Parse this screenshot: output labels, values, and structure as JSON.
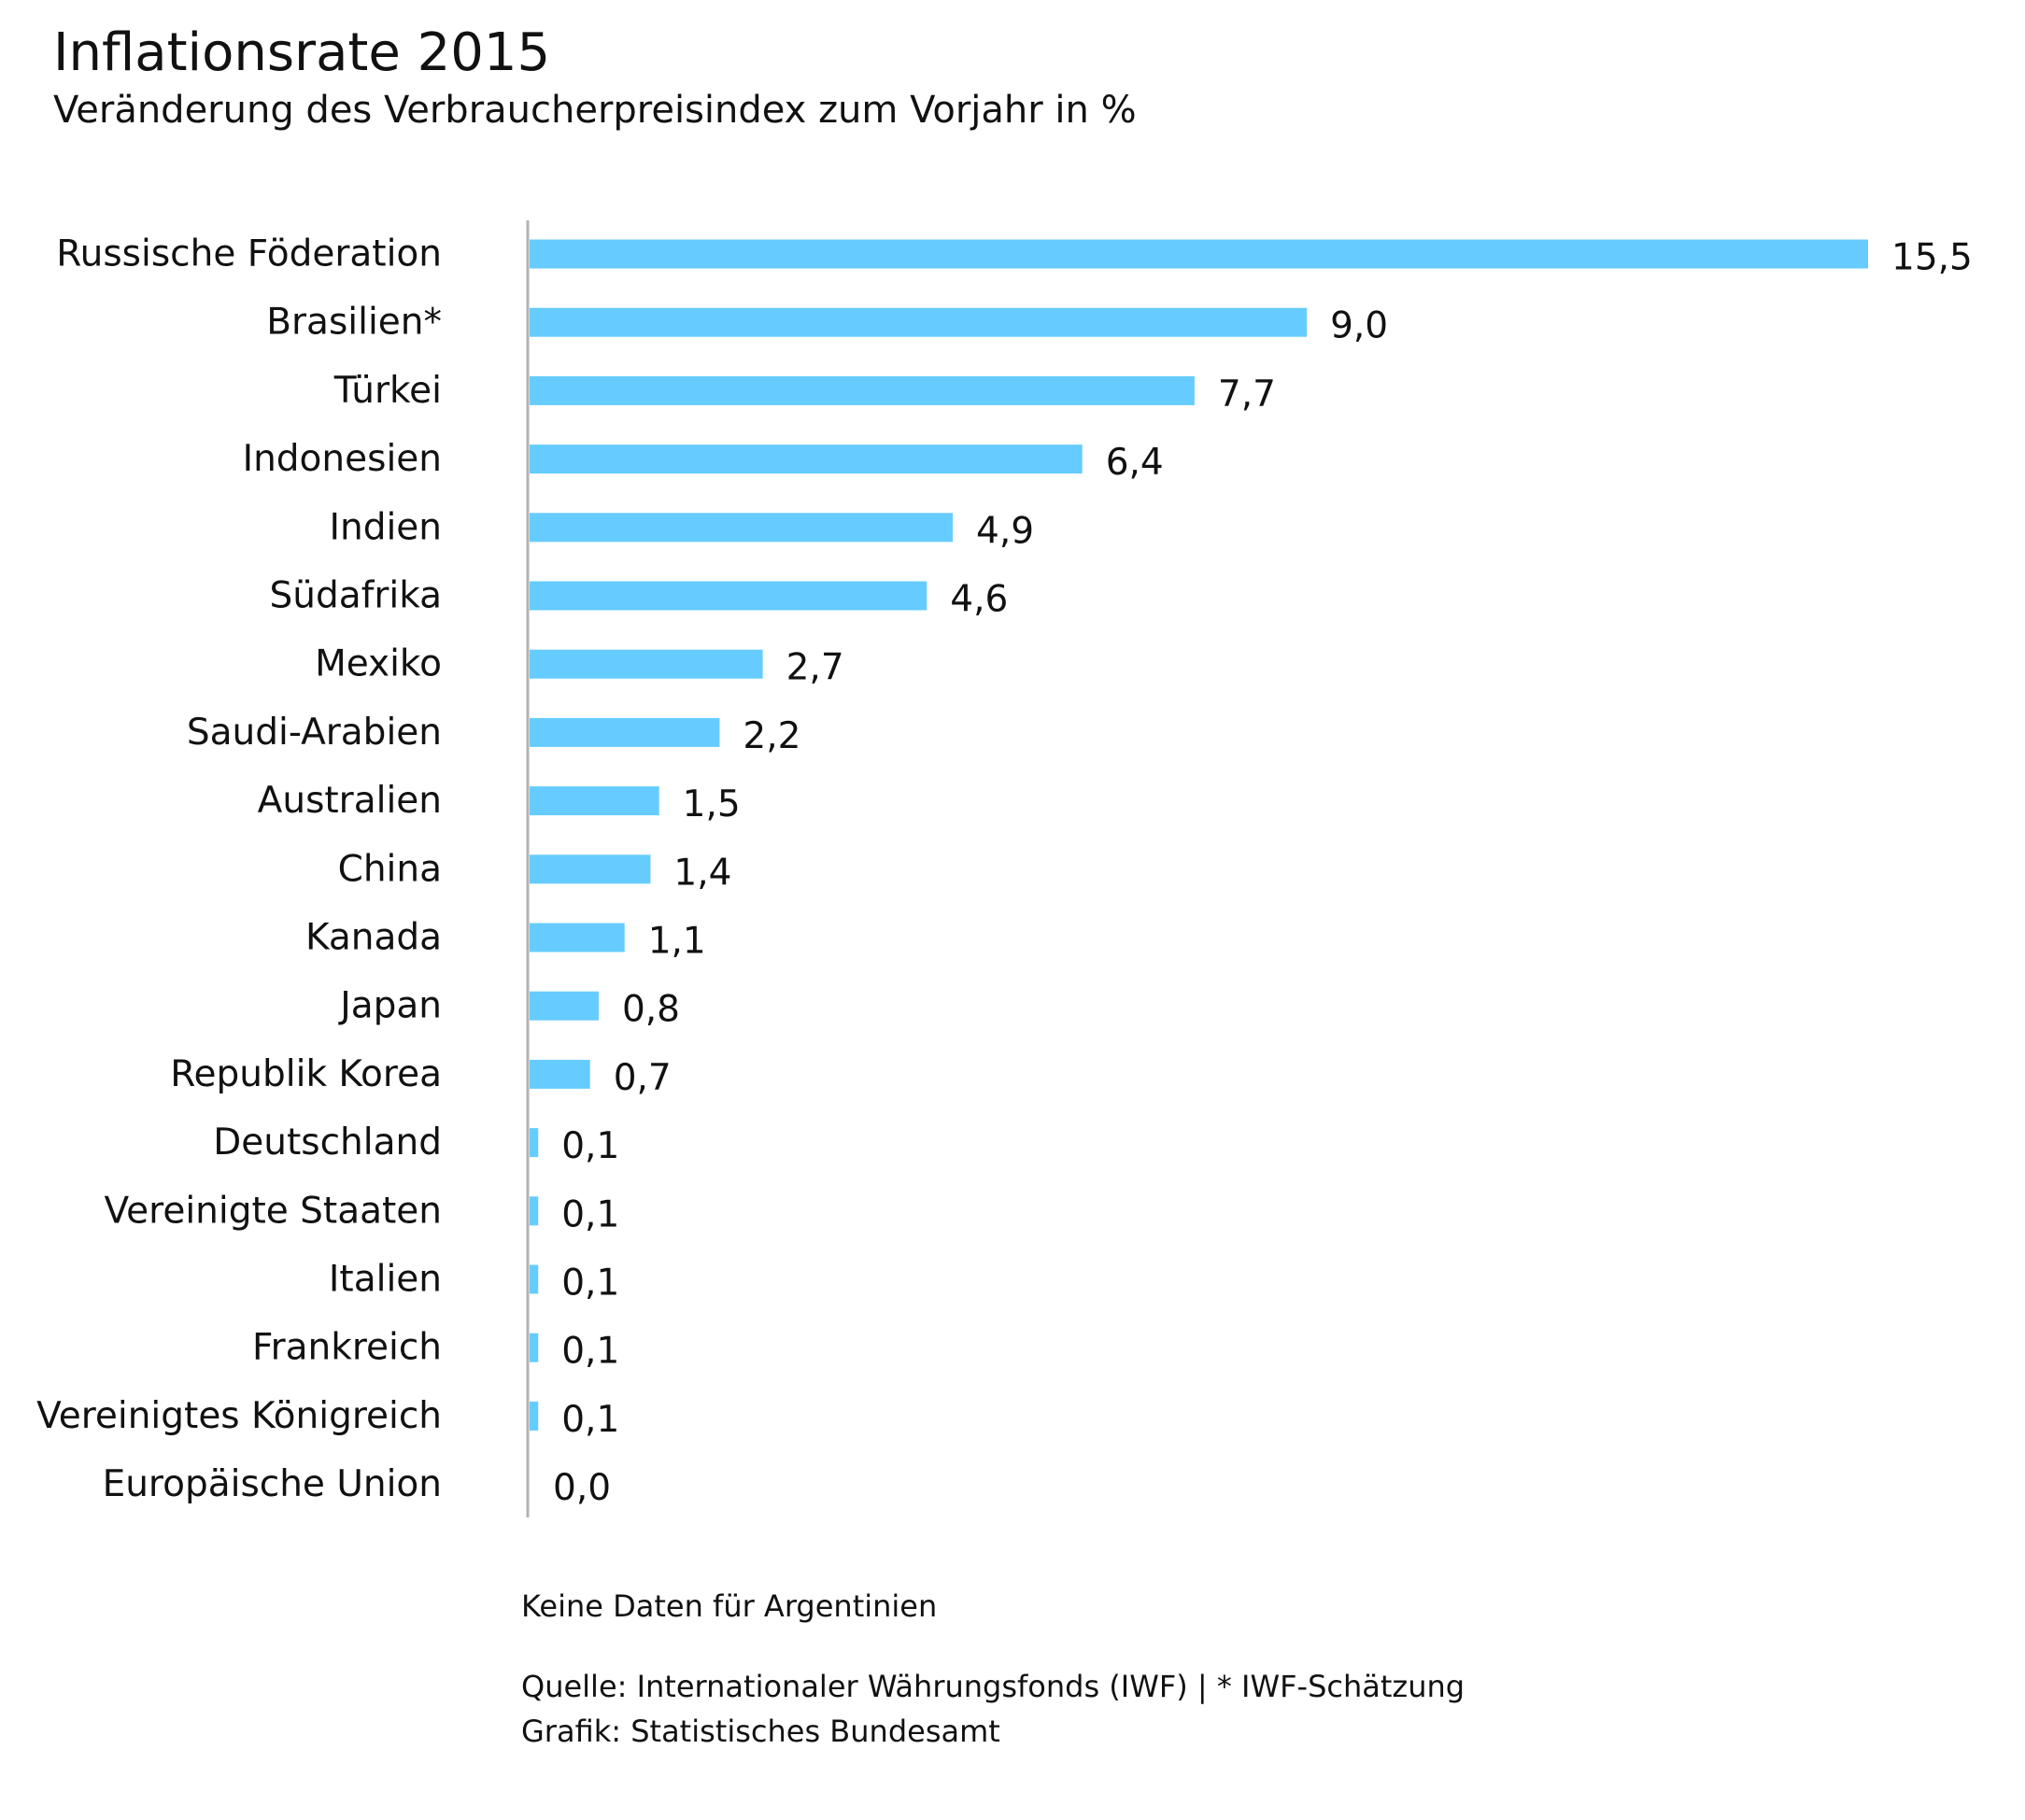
{
  "title": "Inflationsrate 2015",
  "subtitle": "Veränderung des Verbraucherpreisindex zum Vorjahr in %",
  "notes": {
    "missing": "Keine Daten für Argentinien",
    "source": "Quelle: Internationaler Währungsfonds (IWF) | * IWF-Schätzung",
    "credit": "Grafik: Statistisches Bundesamt"
  },
  "colors": {
    "bar": "#66CCFF",
    "axis": "#b3b3b3",
    "text": "#111111"
  },
  "chart_data": {
    "type": "bar",
    "orientation": "horizontal",
    "title": "Inflationsrate 2015",
    "subtitle": "Veränderung des Verbraucherpreisindex zum Vorjahr in %",
    "xlabel": "",
    "ylabel": "",
    "xlim": [
      0,
      15.5
    ],
    "grid": false,
    "legend": "none",
    "categories": [
      "Russische Föderation",
      "Brasilien*",
      "Türkei",
      "Indonesien",
      "Indien",
      "Südafrika",
      "Mexiko",
      "Saudi-Arabien",
      "Australien",
      "China",
      "Kanada",
      "Japan",
      "Republik Korea",
      "Deutschland",
      "Vereinigte Staaten",
      "Italien",
      "Frankreich",
      "Vereinigtes Königreich",
      "Europäische Union"
    ],
    "values": [
      15.5,
      9.0,
      7.7,
      6.4,
      4.9,
      4.6,
      2.7,
      2.2,
      1.5,
      1.4,
      1.1,
      0.8,
      0.7,
      0.1,
      0.1,
      0.1,
      0.1,
      0.1,
      0.0
    ],
    "value_labels": [
      "15,5",
      "9,0",
      "7,7",
      "6,4",
      "4,9",
      "4,6",
      "2,7",
      "2,2",
      "1,5",
      "1,4",
      "1,1",
      "0,8",
      "0,7",
      "0,1",
      "0,1",
      "0,1",
      "0,1",
      "0,1",
      "0,0"
    ]
  }
}
